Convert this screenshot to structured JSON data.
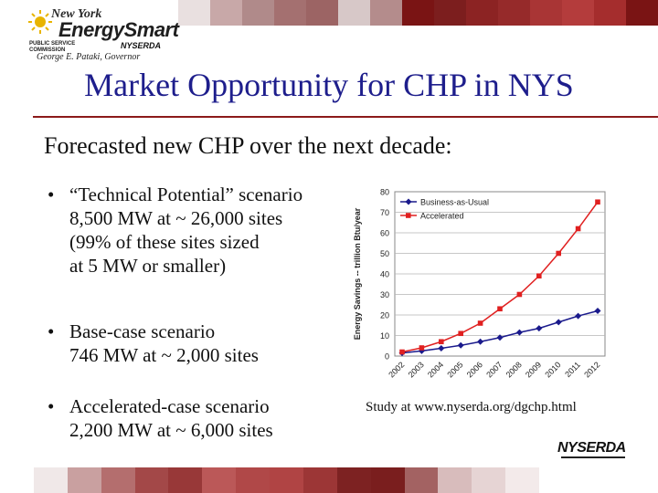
{
  "colors": {
    "title": "#1e1e8c",
    "accent_rule": "#8c1a1a",
    "bau_series": "#1a1a8c",
    "accelerated_series": "#e02020",
    "top_bar": [
      "#ffffff",
      "#e9e0e0",
      "#c8a8a8",
      "#b08a8a",
      "#a47070",
      "#9c6464",
      "#d7c8c8",
      "#b48c8c",
      "#7a1414",
      "#7c1e1e",
      "#8c2323",
      "#962a2a",
      "#a93535",
      "#b43c3c",
      "#a52d2d",
      "#7a1414"
    ],
    "bottom_bar": [
      "#ffffff",
      "#f0e8e8",
      "#c9a0a0",
      "#b46e6e",
      "#a34848",
      "#983838",
      "#bb5858",
      "#b04848",
      "#b04444",
      "#9c3636",
      "#7d2222",
      "#7a1e1e",
      "#a36262",
      "#d8bcbc",
      "#e6d4d4",
      "#f3eaea"
    ]
  },
  "logo": {
    "line1": "New York",
    "line2": "EnergySmart",
    "agency_left": "PUBLIC SERVICE COMMISSION",
    "agency_right": "NYSERDA",
    "governor": "George E. Pataki, Governor"
  },
  "slide": {
    "title": "Market Opportunity for CHP in NYS",
    "subtitle": "Forecasted new CHP over the next decade:",
    "bullets": [
      {
        "lines": [
          "“Technical Potential” scenario",
          "8,500 MW at ~ 26,000 sites",
          "(99% of these sites sized",
          "at 5 MW or smaller)"
        ]
      },
      {
        "lines": [
          "Base-case scenario",
          "746 MW at ~ 2,000 sites"
        ]
      },
      {
        "lines": [
          "Accelerated-case scenario",
          "2,200 MW at ~ 6,000 sites"
        ]
      }
    ],
    "caption": "Study at www.nyserda.org/dgchp.html",
    "footer_logo": "NYSERDA"
  },
  "chart_data": {
    "type": "line",
    "x": [
      "2002",
      "2003",
      "2004",
      "2005",
      "2006",
      "2007",
      "2008",
      "2009",
      "2010",
      "2011",
      "2012"
    ],
    "series": [
      {
        "name": "Business-as-Usual",
        "values": [
          1.5,
          2.5,
          3.8,
          5.2,
          7.0,
          9.0,
          11.5,
          13.5,
          16.5,
          19.5,
          22.0
        ],
        "marker": "diamond",
        "color": "#1a1a8c"
      },
      {
        "name": "Accelerated",
        "values": [
          2,
          4,
          7,
          11,
          16,
          23,
          30,
          39,
          50,
          62,
          75
        ],
        "marker": "square",
        "color": "#e02020"
      }
    ],
    "ylabel": "Energy Savings -- trillion Btu/year",
    "xlabel": "",
    "ylim": [
      0,
      80
    ],
    "yticks": [
      "0",
      "10",
      "20",
      "30",
      "40",
      "50",
      "60",
      "70",
      "80"
    ],
    "grid": true,
    "legend": "top-left"
  }
}
